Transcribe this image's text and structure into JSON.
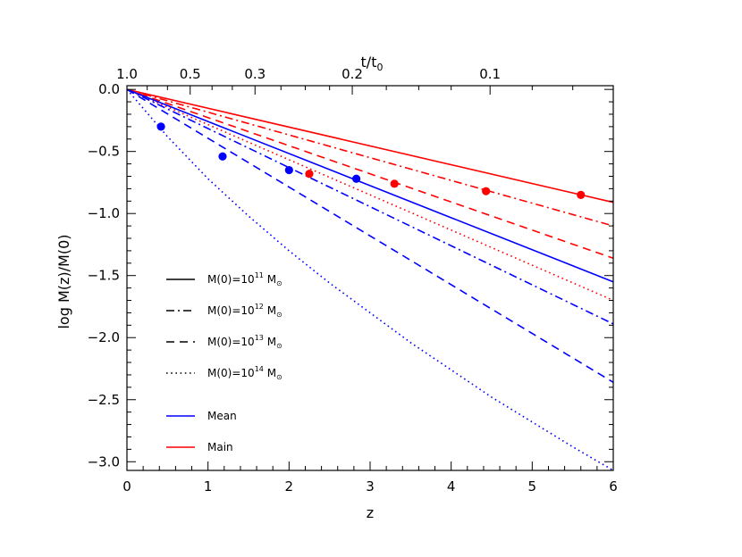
{
  "chart_data": {
    "type": "line",
    "xlabel": "z",
    "ylabel": "log M(z)/M(0)",
    "top_axis_label": "t/t₀",
    "xlim": [
      0,
      6
    ],
    "ylim": [
      -3.07,
      0.03
    ],
    "x_ticks": [
      "0",
      "1",
      "2",
      "3",
      "4",
      "5",
      "6"
    ],
    "y_ticks": [
      "0.0",
      "−0.5",
      "−1.0",
      "−1.5",
      "−2.0",
      "−2.5",
      "−3.0"
    ],
    "top_ticks": [
      {
        "label": "1.0",
        "z": 0.0
      },
      {
        "label": "0.5",
        "z": 0.78
      },
      {
        "label": "0.3",
        "z": 1.58
      },
      {
        "label": "0.2",
        "z": 2.78
      },
      {
        "label": "0.1",
        "z": 4.48
      }
    ],
    "series": [
      {
        "group": "Main",
        "color": "#ff0000",
        "style": "solid",
        "x": [
          0,
          6
        ],
        "y": [
          0,
          -0.91
        ]
      },
      {
        "group": "Main",
        "color": "#ff0000",
        "style": "dashdot",
        "x": [
          0,
          6
        ],
        "y": [
          0,
          -1.1
        ]
      },
      {
        "group": "Main",
        "color": "#ff0000",
        "style": "dashed",
        "x": [
          0,
          6
        ],
        "y": [
          0,
          -1.36
        ]
      },
      {
        "group": "Main",
        "color": "#ff0000",
        "style": "dotted",
        "x": [
          0,
          6
        ],
        "y": [
          0,
          -1.7
        ]
      },
      {
        "group": "Mean",
        "color": "#0000ff",
        "style": "solid",
        "x": [
          0,
          6
        ],
        "y": [
          0,
          -1.55
        ]
      },
      {
        "group": "Mean",
        "color": "#0000ff",
        "style": "dashdot",
        "x": [
          0,
          6
        ],
        "y": [
          0,
          -1.89
        ]
      },
      {
        "group": "Mean",
        "color": "#0000ff",
        "style": "dashed",
        "x": [
          0,
          6
        ],
        "y": [
          0,
          -2.36
        ]
      },
      {
        "group": "Mean",
        "color": "#0000ff",
        "style": "dotted",
        "x": [
          0,
          0.5,
          1,
          1.5,
          2,
          2.5,
          3,
          3.5,
          4,
          4.5,
          5,
          5.5,
          6
        ],
        "y": [
          0,
          -0.38,
          -0.72,
          -1.02,
          -1.3,
          -1.56,
          -1.8,
          -2.04,
          -2.26,
          -2.48,
          -2.68,
          -2.88,
          -3.07
        ]
      }
    ],
    "points": [
      {
        "group": "Mean",
        "color": "#0000ff",
        "x": 0.42,
        "y": -0.3
      },
      {
        "group": "Mean",
        "color": "#0000ff",
        "x": 1.18,
        "y": -0.54
      },
      {
        "group": "Mean",
        "color": "#0000ff",
        "x": 2.0,
        "y": -0.65
      },
      {
        "group": "Mean",
        "color": "#0000ff",
        "x": 2.83,
        "y": -0.72
      },
      {
        "group": "Main",
        "color": "#ff0000",
        "x": 2.25,
        "y": -0.68
      },
      {
        "group": "Main",
        "color": "#ff0000",
        "x": 3.3,
        "y": -0.76
      },
      {
        "group": "Main",
        "color": "#ff0000",
        "x": 4.43,
        "y": -0.82
      },
      {
        "group": "Main",
        "color": "#ff0000",
        "x": 5.6,
        "y": -0.85
      }
    ],
    "legend": {
      "placement": "lower-left",
      "styles": [
        {
          "style": "solid",
          "label": "M(0)=10",
          "exp": "11",
          "unit": "M",
          "sub": "⊙"
        },
        {
          "style": "dashdot",
          "label": "M(0)=10",
          "exp": "12",
          "unit": "M",
          "sub": "⊙"
        },
        {
          "style": "dashed",
          "label": "M(0)=10",
          "exp": "13",
          "unit": "M",
          "sub": "⊙"
        },
        {
          "style": "dotted",
          "label": "M(0)=10",
          "exp": "14",
          "unit": "M",
          "sub": "⊙"
        }
      ],
      "colors": [
        {
          "label": "Mean",
          "color": "#0000ff"
        },
        {
          "label": "Main",
          "color": "#ff0000"
        }
      ]
    }
  }
}
